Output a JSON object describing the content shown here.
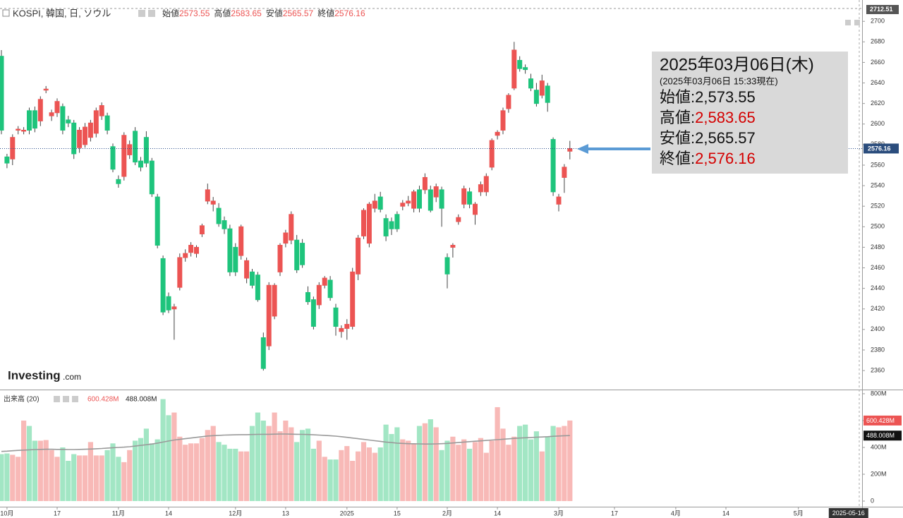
{
  "chart_data": {
    "type": "candlestick",
    "title": "KOSPI, 韓国, 日, ソウル",
    "ohlc_names": [
      "始値",
      "高値",
      "安値",
      "終値"
    ],
    "categories": [
      null,
      "10月",
      null,
      null,
      null,
      null,
      null,
      null,
      null,
      null,
      "17",
      null,
      null,
      null,
      null,
      null,
      null,
      null,
      null,
      null,
      null,
      "11月",
      null,
      null,
      null,
      null,
      null,
      null,
      null,
      null,
      "14",
      null,
      null,
      null,
      null,
      null,
      null,
      null,
      null,
      null,
      null,
      null,
      "12月",
      null,
      null,
      null,
      null,
      null,
      null,
      null,
      null,
      "13",
      null,
      null,
      null,
      null,
      null,
      null,
      null,
      null,
      null,
      null,
      "2025",
      null,
      null,
      null,
      null,
      null,
      null,
      null,
      null,
      "15",
      null,
      null,
      null,
      null,
      null,
      null,
      null,
      null,
      "2月",
      null,
      null,
      null,
      null,
      null,
      null,
      null,
      null,
      "14",
      null,
      null,
      null,
      null,
      null,
      null,
      null,
      null,
      null,
      null,
      "3月",
      null,
      null,
      null,
      null,
      null,
      null,
      null,
      null,
      null,
      "17",
      null,
      null,
      null,
      null,
      null,
      null,
      null,
      null,
      null,
      null,
      "4月",
      null,
      null,
      null,
      null,
      null,
      null,
      null,
      null,
      "14",
      null,
      null,
      null,
      null,
      null,
      null,
      null,
      null,
      null,
      null,
      null,
      null,
      "5月",
      null,
      null,
      null,
      null,
      null,
      null,
      null,
      null,
      "2025-05-16"
    ],
    "open": [
      2666,
      2568,
      2566,
      2594,
      2593,
      2613,
      2613,
      2603,
      2633,
      2608,
      2611,
      2617,
      2604,
      2601,
      2577,
      2580,
      2587,
      2591,
      2608,
      2608,
      2578,
      2546,
      2549,
      2570,
      2593,
      2564,
      2587,
      2564,
      2529,
      2469,
      2432,
      2420,
      2441,
      2470,
      2475,
      2474,
      2493,
      2525,
      2522,
      2518,
      2506,
      2498,
      2480,
      2472,
      2450,
      2456,
      2453,
      2392,
      2384,
      2413,
      2456,
      2484,
      2487,
      2487,
      2484,
      2436,
      2429,
      2424,
      2443,
      2448,
      2421,
      2398,
      2401,
      2403,
      2454,
      2491,
      2484,
      2518,
      2529,
      2508,
      2505,
      2512,
      2520,
      2523,
      2518,
      2536,
      2536,
      2536,
      2529,
      2536,
      2470,
      2480,
      2505,
      2522,
      2534,
      2512,
      2534,
      2534,
      2558,
      2589,
      2594,
      2615,
      2635,
      2662,
      2655,
      2644,
      2633,
      2628,
      2637,
      2585,
      2522,
      2548,
      2573.55,
      null,
      null,
      null,
      null,
      null,
      null,
      null,
      null,
      null,
      null,
      null,
      null,
      null,
      null,
      null,
      null,
      null,
      null,
      null,
      null,
      null,
      null,
      null,
      null,
      null,
      null,
      null,
      null,
      null,
      null,
      null,
      null,
      null,
      null,
      null,
      null,
      null,
      null,
      null,
      null,
      null,
      null,
      null,
      null,
      null,
      null,
      null,
      null,
      null,
      null
    ],
    "high": [
      2672,
      2571,
      2590,
      2598,
      2597,
      2616,
      2617,
      2627,
      2637,
      2614,
      2625,
      2620,
      2608,
      2604,
      2597,
      2601,
      2604,
      2616,
      2621,
      2611,
      2581,
      2550,
      2592,
      2584,
      2597,
      2568,
      2593,
      2567,
      2532,
      2472,
      2436,
      2425,
      2474,
      2478,
      2485,
      2482,
      2503,
      2542,
      2529,
      2523,
      2510,
      2502,
      2484,
      2502,
      2470,
      2459,
      2456,
      2397,
      2446,
      2445,
      2484,
      2497,
      2515,
      2492,
      2488,
      2442,
      2432,
      2446,
      2452,
      2452,
      2425,
      2404,
      2410,
      2460,
      2492,
      2518,
      2524,
      2532,
      2534,
      2512,
      2509,
      2515,
      2526,
      2530,
      2536,
      2540,
      2552,
      2540,
      2542,
      2539,
      2474,
      2484,
      2512,
      2540,
      2538,
      2524,
      2544,
      2552,
      2586,
      2594,
      2616,
      2630,
      2680,
      2666,
      2658,
      2649,
      2640,
      2648,
      2640,
      2587,
      2532,
      2561,
      2583.65,
      null,
      null,
      null,
      null,
      null,
      null,
      null,
      null,
      null,
      null,
      null,
      null,
      null,
      null,
      null,
      null,
      null,
      null,
      null,
      null,
      null,
      null,
      null,
      null,
      null,
      null,
      null,
      null,
      null,
      null,
      null,
      null,
      null,
      null,
      null,
      null,
      null,
      null,
      null,
      null,
      null,
      null,
      null,
      null,
      null,
      null,
      null,
      null,
      null,
      null
    ],
    "low": [
      2590,
      2557,
      2560,
      2590,
      2590,
      2590,
      2592,
      2598,
      2630,
      2603,
      2607,
      2590,
      2597,
      2566,
      2572,
      2577,
      2583,
      2587,
      2604,
      2590,
      2553,
      2538,
      2545,
      2566,
      2560,
      2554,
      2558,
      2529,
      2479,
      2414,
      2416,
      2390,
      2438,
      2466,
      2471,
      2470,
      2490,
      2522,
      2515,
      2500,
      2493,
      2452,
      2452,
      2468,
      2445,
      2440,
      2427,
      2360,
      2380,
      2410,
      2452,
      2480,
      2483,
      2455,
      2460,
      2424,
      2400,
      2420,
      2440,
      2428,
      2394,
      2392,
      2390,
      2400,
      2448,
      2488,
      2480,
      2514,
      2514,
      2486,
      2492,
      2495,
      2516,
      2520,
      2514,
      2514,
      2532,
      2514,
      2524,
      2500,
      2440,
      2470,
      2502,
      2518,
      2518,
      2502,
      2530,
      2530,
      2555,
      2585,
      2590,
      2611,
      2633,
      2651,
      2649,
      2632,
      2617,
      2625,
      2612,
      2530,
      2515,
      2533,
      2565.57,
      null,
      null,
      null,
      null,
      null,
      null,
      null,
      null,
      null,
      null,
      null,
      null,
      null,
      null,
      null,
      null,
      null,
      null,
      null,
      null,
      null,
      null,
      null,
      null,
      null,
      null,
      null,
      null,
      null,
      null,
      null,
      null,
      null,
      null,
      null,
      null,
      null,
      null,
      null,
      null,
      null,
      null,
      null,
      null,
      null,
      null,
      null,
      null,
      null,
      null
    ],
    "close": [
      2594,
      2562,
      2587,
      2595,
      2594,
      2594,
      2596,
      2624,
      2634,
      2611,
      2622,
      2594,
      2601,
      2571,
      2594,
      2597,
      2601,
      2613,
      2618,
      2594,
      2556,
      2542,
      2589,
      2580,
      2563,
      2558,
      2562,
      2532,
      2482,
      2417,
      2419,
      2422,
      2470,
      2474,
      2482,
      2480,
      2501,
      2536,
      2525,
      2503,
      2498,
      2456,
      2456,
      2500,
      2467,
      2443,
      2429,
      2362,
      2443,
      2443,
      2482,
      2494,
      2512,
      2458,
      2463,
      2427,
      2403,
      2443,
      2450,
      2431,
      2403,
      2401,
      2405,
      2456,
      2489,
      2516,
      2522,
      2525,
      2517,
      2491,
      2498,
      2498,
      2523,
      2525,
      2534,
      2518,
      2548,
      2516,
      2539,
      2518,
      2454,
      2482,
      2509,
      2537,
      2522,
      2522,
      2541,
      2549,
      2584,
      2592,
      2613,
      2628,
      2672,
      2654,
      2653,
      2635,
      2620,
      2642,
      2621,
      2534,
      2529,
      2558,
      2576.16,
      null,
      null,
      null,
      null,
      null,
      null,
      null,
      null,
      null,
      null,
      null,
      null,
      null,
      null,
      null,
      null,
      null,
      null,
      null,
      null,
      null,
      null,
      null,
      null,
      null,
      null,
      null,
      null,
      null,
      null,
      null,
      null,
      null,
      null,
      null,
      null,
      null,
      null,
      null,
      null,
      null,
      null,
      null,
      null,
      null,
      null,
      null,
      null,
      null,
      null
    ],
    "up_color": "#ec5453",
    "down_color": "#1ec47c",
    "ylim": [
      2341.5,
      2712.51
    ],
    "yticks": [
      2360,
      2380,
      2400,
      2420,
      2440,
      2460,
      2480,
      2500,
      2520,
      2540,
      2560,
      2580,
      2600,
      2620,
      2640,
      2660,
      2680,
      2700
    ],
    "volume": {
      "name": "出来高 (20)",
      "up_color": "#f8b9b7",
      "down_color": "#a2e6c4",
      "values": [
        350,
        355,
        345,
        330,
        600,
        560,
        450,
        450,
        455,
        380,
        330,
        400,
        300,
        350,
        340,
        340,
        440,
        340,
        340,
        380,
        430,
        330,
        290,
        380,
        450,
        470,
        540,
        430,
        460,
        760,
        640,
        660,
        480,
        420,
        430,
        430,
        470,
        530,
        560,
        440,
        420,
        390,
        390,
        370,
        370,
        560,
        660,
        600,
        560,
        660,
        520,
        600,
        550,
        440,
        530,
        540,
        390,
        450,
        330,
        310,
        310,
        380,
        410,
        300,
        370,
        440,
        400,
        360,
        400,
        570,
        500,
        550,
        460,
        450,
        430,
        560,
        580,
        610,
        550,
        380,
        450,
        480,
        420,
        460,
        390,
        440,
        470,
        360,
        450,
        700,
        540,
        420,
        480,
        560,
        570,
        460,
        520,
        370,
        480,
        560,
        550,
        560,
        600.428,
        null,
        null,
        null,
        null,
        null,
        null,
        null,
        null,
        null,
        null,
        null,
        null,
        null,
        null,
        null,
        null,
        null,
        null,
        null,
        null,
        null,
        null,
        null,
        null,
        null,
        null,
        null,
        null,
        null,
        null,
        null,
        null,
        null,
        null,
        null,
        null,
        null,
        null,
        null,
        null,
        null,
        null,
        null,
        null,
        null,
        null,
        null,
        null,
        null,
        null
      ],
      "last_label": "600.428M",
      "ma_color": "#9a9a9a",
      "ma_values": [
        370,
        372,
        375,
        378,
        380,
        382,
        384,
        385,
        386,
        386,
        385,
        385,
        384,
        384,
        385,
        386,
        388,
        390,
        392,
        395,
        398,
        400,
        402,
        405,
        410,
        415,
        420,
        425,
        432,
        440,
        448,
        455,
        460,
        465,
        470,
        475,
        480,
        485,
        488,
        490,
        492,
        493,
        494,
        495,
        495,
        496,
        497,
        498,
        498,
        499,
        500,
        500,
        499,
        498,
        497,
        496,
        494,
        492,
        490,
        487,
        484,
        480,
        475,
        470,
        465,
        460,
        455,
        450,
        445,
        440,
        436,
        432,
        430,
        428,
        427,
        426,
        425,
        425,
        426,
        428,
        430,
        433,
        436,
        440,
        443,
        446,
        449,
        452,
        455,
        458,
        461,
        464,
        467,
        470,
        472,
        474,
        476,
        478,
        480,
        483,
        485,
        487,
        488.008,
        null,
        null,
        null,
        null,
        null,
        null,
        null,
        null,
        null,
        null,
        null,
        null,
        null,
        null,
        null,
        null,
        null,
        null,
        null,
        null,
        null,
        null,
        null,
        null,
        null,
        null,
        null,
        null,
        null,
        null,
        null,
        null,
        null,
        null,
        null,
        null,
        null,
        null,
        null,
        null,
        null,
        null,
        null,
        null,
        null,
        null,
        null,
        null,
        null,
        null
      ],
      "ma_last_label": "488.008M",
      "ylim": [
        -42,
        826
      ],
      "yticks": [
        0,
        {
          "value": 200,
          "label": "200M"
        },
        {
          "value": 400,
          "label": "400M"
        },
        {
          "value": 600,
          "label": "600M"
        },
        {
          "value": 800,
          "label": "800M"
        }
      ]
    },
    "tooltip": {
      "date": "2025年03月06日(木)",
      "asof": "(2025年03月06日 15:33現在)",
      "rows": [
        {
          "label": "始値:",
          "value": "2,573.55",
          "color": "#111111"
        },
        {
          "label": "高値:",
          "value": "2,583.65",
          "color": "#d40000"
        },
        {
          "label": "安値:",
          "value": "2,565.57",
          "color": "#111111"
        },
        {
          "label": "終値:",
          "value": "2,576.16",
          "color": "#d40000"
        }
      ]
    },
    "logo": "Investing",
    "logo_suffix": ".com"
  }
}
